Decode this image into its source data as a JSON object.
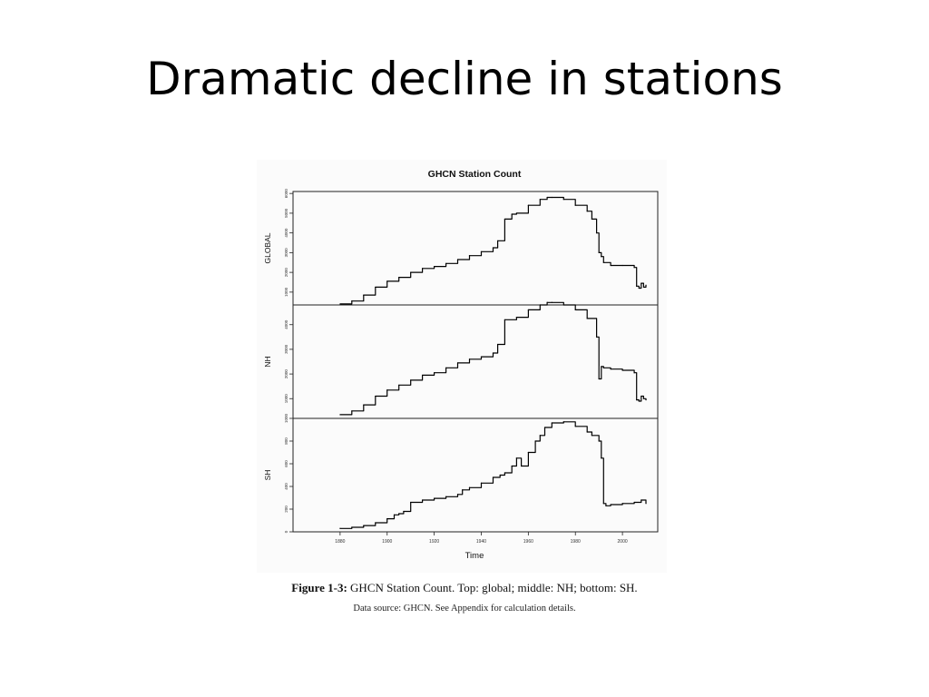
{
  "slide": {
    "title": "Dramatic decline in stations"
  },
  "caption": {
    "label": "Figure 1-3:",
    "text": " GHCN Station Count. Top: global; middle: NH; bottom: SH.",
    "source": "Data source: GHCN. See Appendix for calculation details."
  },
  "chart_data": {
    "type": "line",
    "title": "GHCN Station Count",
    "xlabel": "Time",
    "xlim": [
      1860,
      2015
    ],
    "x_ticks": [
      1880,
      1900,
      1920,
      1940,
      1960,
      1980,
      2000
    ],
    "grid": false,
    "line_color": "#000000",
    "panels": [
      {
        "name": "GLOBAL",
        "ylabel": "GLOBAL",
        "ylim": [
          350,
          6100
        ],
        "y_ticks": [
          1000,
          2000,
          3000,
          4000,
          5000,
          6000
        ],
        "x": [
          1880,
          1885,
          1890,
          1895,
          1900,
          1905,
          1910,
          1915,
          1920,
          1925,
          1930,
          1935,
          1940,
          1945,
          1947,
          1950,
          1953,
          1955,
          1960,
          1965,
          1968,
          1970,
          1975,
          1980,
          1985,
          1987,
          1989,
          1990,
          1991,
          1992,
          1995,
          2000,
          2005,
          2006,
          2007,
          2008,
          2009,
          2010
        ],
        "values": [
          400,
          550,
          850,
          1250,
          1550,
          1750,
          2000,
          2200,
          2300,
          2450,
          2650,
          2850,
          3050,
          3250,
          3600,
          4700,
          4950,
          5000,
          5400,
          5700,
          5800,
          5800,
          5700,
          5400,
          5100,
          4700,
          4000,
          3000,
          2800,
          2500,
          2350,
          2350,
          2250,
          1300,
          1200,
          1450,
          1250,
          1350
        ]
      },
      {
        "name": "NH",
        "ylabel": "NH",
        "ylim": [
          200,
          4800
        ],
        "y_ticks": [
          1000,
          2000,
          3000,
          4000
        ],
        "x": [
          1880,
          1885,
          1890,
          1895,
          1900,
          1905,
          1910,
          1915,
          1920,
          1925,
          1930,
          1935,
          1940,
          1945,
          1947,
          1950,
          1955,
          1960,
          1965,
          1968,
          1970,
          1975,
          1980,
          1985,
          1989,
          1990,
          1991,
          1992,
          1995,
          2000,
          2005,
          2006,
          2007,
          2008,
          2009,
          2010
        ],
        "values": [
          350,
          500,
          750,
          1100,
          1350,
          1550,
          1750,
          1950,
          2050,
          2250,
          2450,
          2600,
          2700,
          2850,
          3200,
          4200,
          4300,
          4600,
          4800,
          4900,
          4900,
          4800,
          4600,
          4250,
          3500,
          1800,
          2300,
          2250,
          2200,
          2150,
          2050,
          950,
          900,
          1100,
          1000,
          950
        ]
      },
      {
        "name": "SH",
        "ylabel": "SH",
        "ylim": [
          0,
          1000
        ],
        "y_ticks": [
          0,
          200,
          400,
          600,
          800,
          1000
        ],
        "x": [
          1880,
          1885,
          1890,
          1895,
          1900,
          1903,
          1905,
          1907,
          1910,
          1915,
          1920,
          1925,
          1930,
          1932,
          1935,
          1940,
          1945,
          1948,
          1950,
          1953,
          1955,
          1957,
          1960,
          1963,
          1965,
          1967,
          1970,
          1975,
          1980,
          1985,
          1987,
          1990,
          1991,
          1992,
          1993,
          1995,
          2000,
          2005,
          2008,
          2010
        ],
        "values": [
          30,
          40,
          55,
          80,
          115,
          150,
          160,
          180,
          260,
          280,
          295,
          310,
          330,
          370,
          390,
          430,
          480,
          500,
          520,
          580,
          650,
          580,
          700,
          800,
          850,
          920,
          960,
          970,
          930,
          880,
          850,
          800,
          650,
          250,
          230,
          240,
          250,
          260,
          280,
          250
        ]
      }
    ]
  }
}
